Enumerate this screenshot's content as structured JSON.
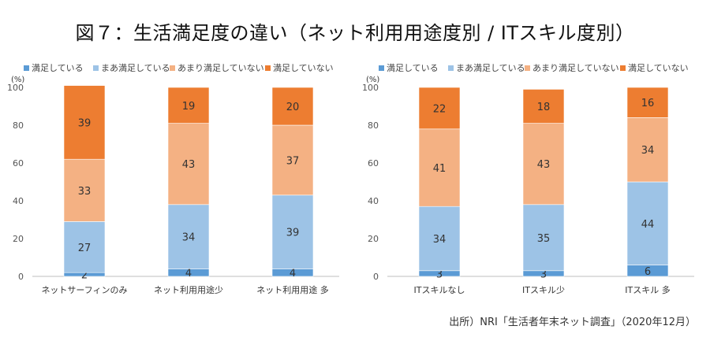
{
  "title": "図７：生活満足度の違い（ネット利用用途度別 / ITスキル度別）",
  "source": "出所）NRI「生活者年末ネット調査」（2020年12月）",
  "colors": {
    "満足している": "#5b9bd5",
    "まあ満足している": "#9dc3e6",
    "あまり満足していない": "#f4b183",
    "満足していない": "#ed7d31"
  },
  "chart_data": [
    {
      "type": "bar",
      "stacked": true,
      "unit": "(%)",
      "ylim": [
        0,
        100
      ],
      "yticks": [
        0,
        20,
        40,
        60,
        80,
        100
      ],
      "grid": false,
      "legend_position": "top",
      "categories": [
        "ネットサーフィンのみ",
        "ネット利用用途少",
        "ネット利用用途 多"
      ],
      "series": [
        {
          "name": "満足している",
          "values": [
            2,
            4,
            4
          ]
        },
        {
          "name": "まあ満足している",
          "values": [
            27,
            34,
            39
          ]
        },
        {
          "name": "あまり満足していない",
          "values": [
            33,
            43,
            37
          ]
        },
        {
          "name": "満足していない",
          "values": [
            39,
            19,
            20
          ]
        }
      ]
    },
    {
      "type": "bar",
      "stacked": true,
      "unit": "(%)",
      "ylim": [
        0,
        100
      ],
      "yticks": [
        0,
        20,
        40,
        60,
        80,
        100
      ],
      "grid": false,
      "legend_position": "top",
      "categories": [
        "ITスキルなし",
        "ITスキル少",
        "ITスキル 多"
      ],
      "series": [
        {
          "name": "満足している",
          "values": [
            3,
            3,
            6
          ]
        },
        {
          "name": "まあ満足している",
          "values": [
            34,
            35,
            44
          ]
        },
        {
          "name": "あまり満足していない",
          "values": [
            41,
            43,
            34
          ]
        },
        {
          "name": "満足していない",
          "values": [
            22,
            18,
            16
          ]
        }
      ]
    }
  ]
}
